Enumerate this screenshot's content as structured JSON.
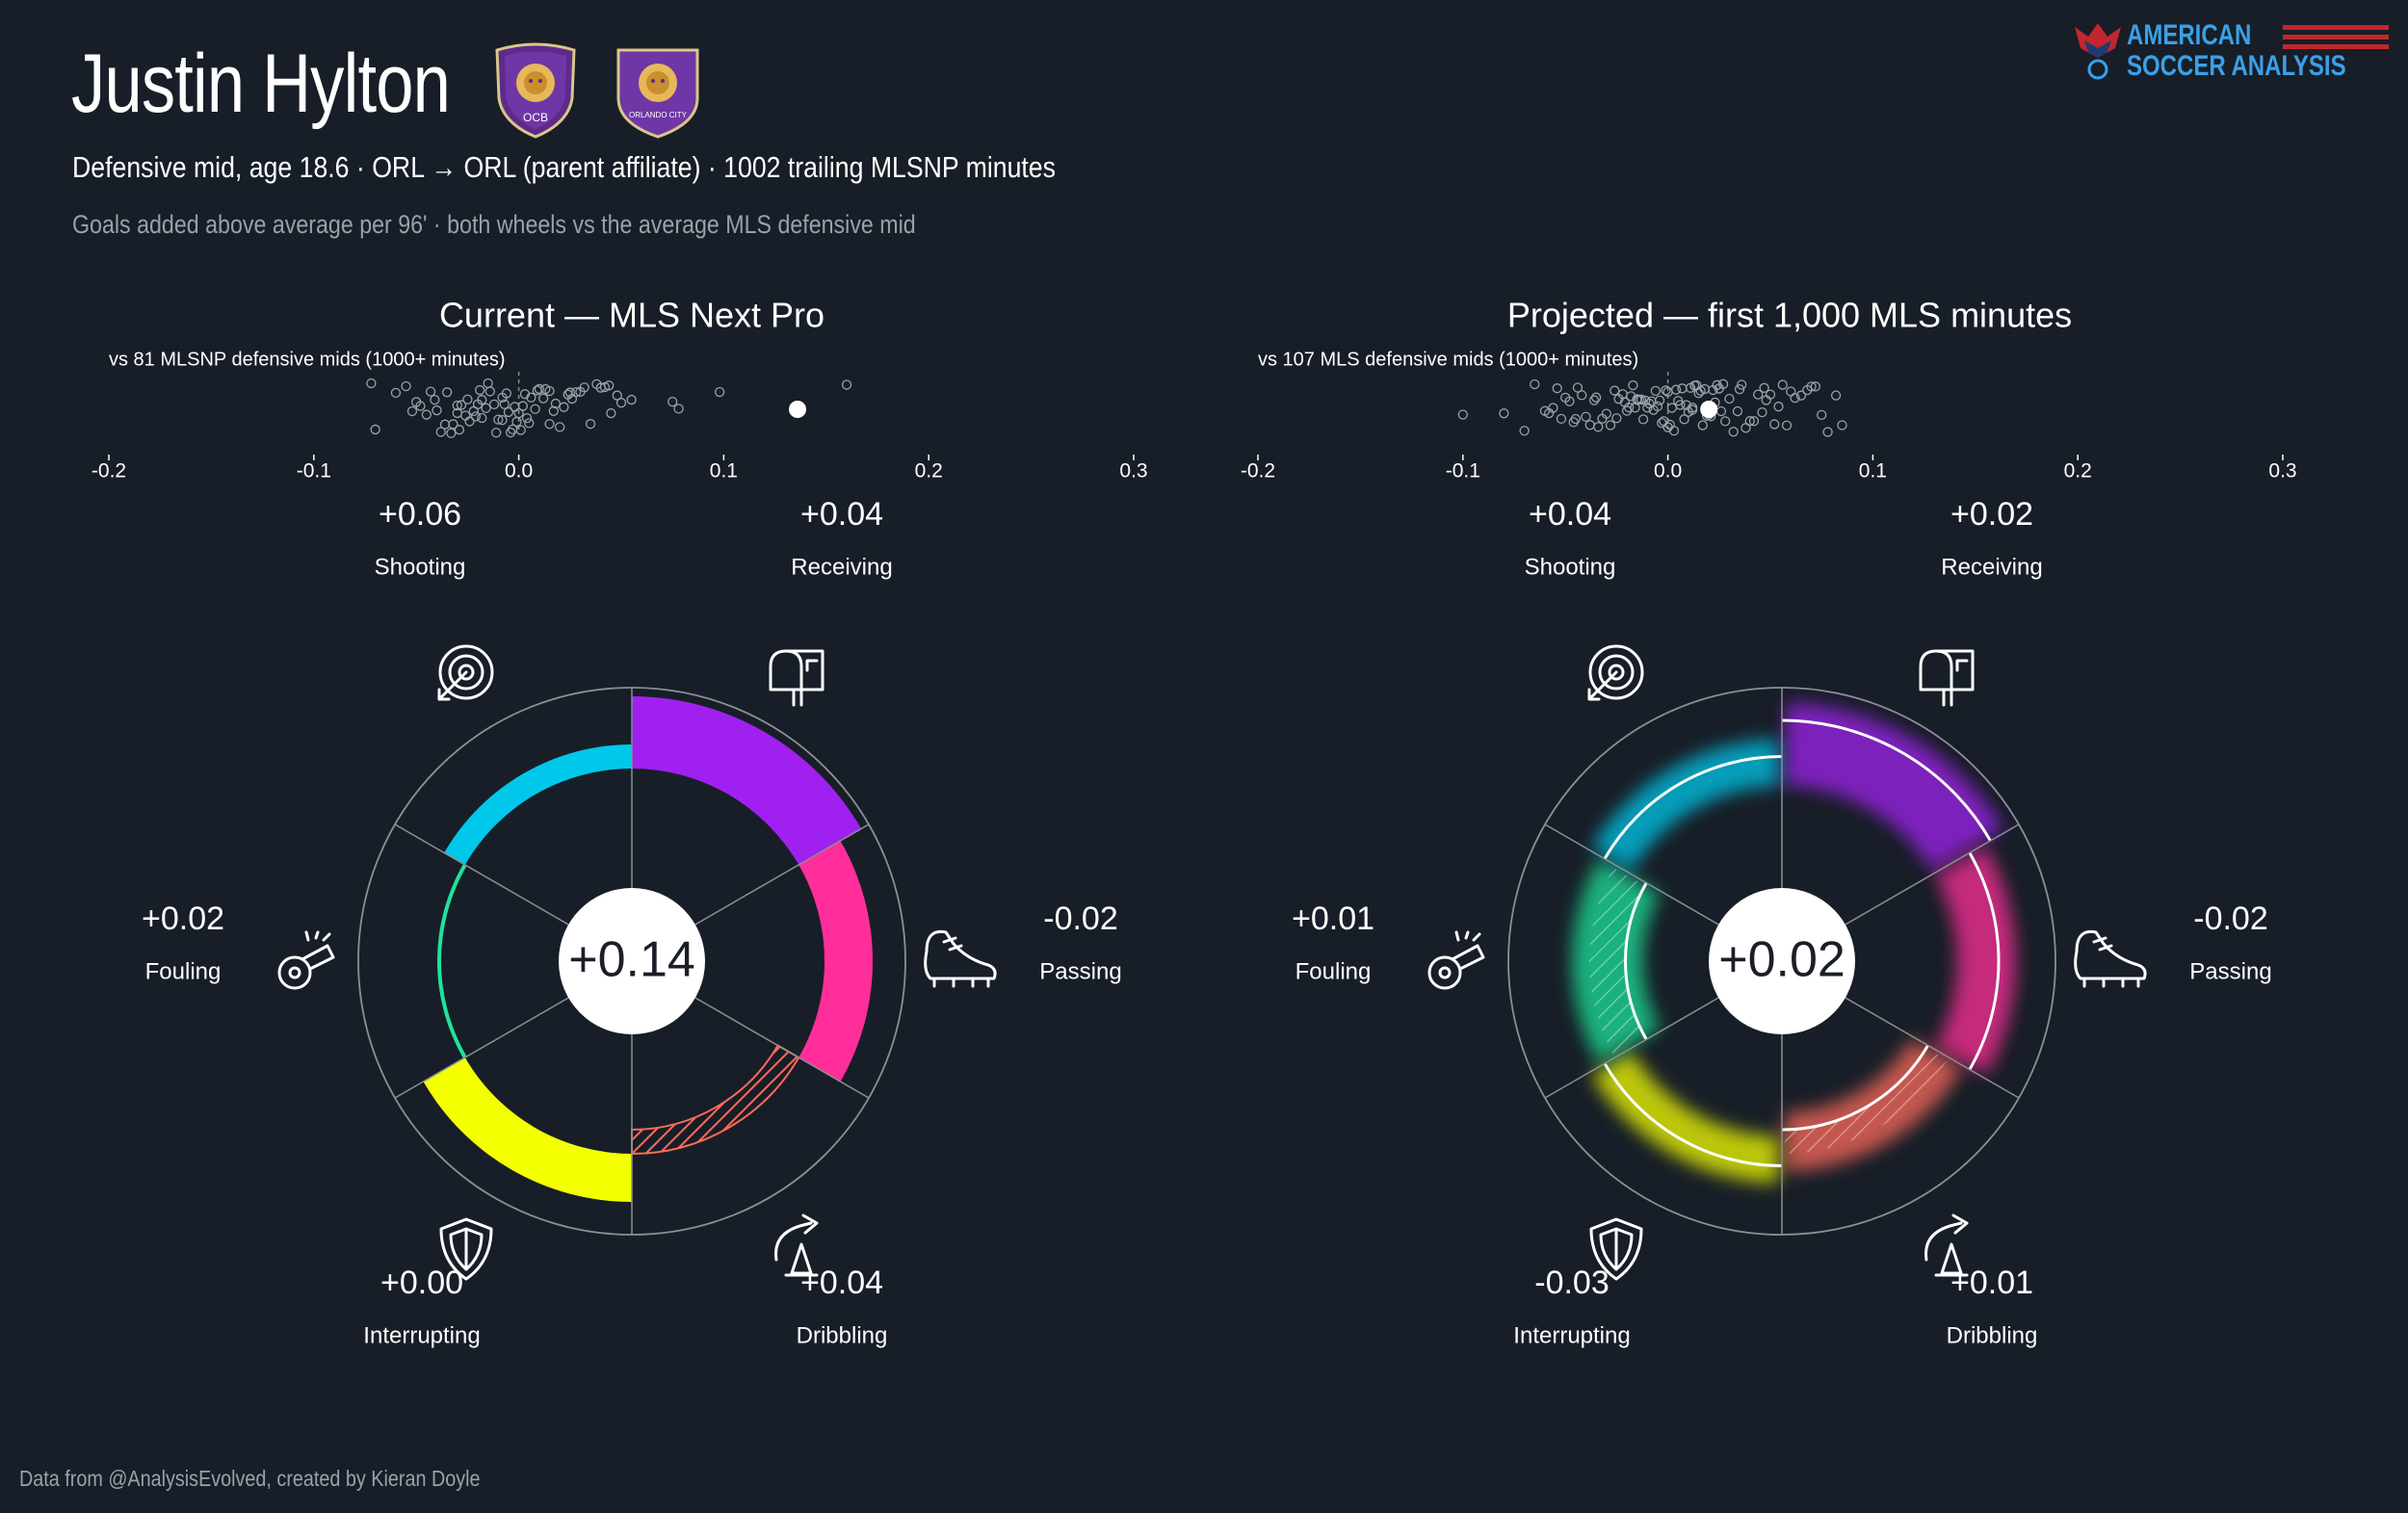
{
  "header": {
    "title": "Justin Hylton",
    "subtitle": "Defensive mid, age 18.6 · ORL → ORL (parent affiliate) · 1002 trailing MLSNP minutes",
    "note": "Goals added above average per 96' · both wheels vs the average MLS defensive mid"
  },
  "badges": {
    "left": {
      "text": "OCB"
    },
    "right": {
      "text": "ORLANDO CITY"
    }
  },
  "brand": {
    "line1": "AMERICAN",
    "line2": "SOCCER ANALYSIS"
  },
  "footer": "Data from @AnalysisEvolved, created by Kieran Doyle",
  "colors": {
    "background": "#171e27",
    "shooting": "#a020f0",
    "receiving": "#ff2e9a",
    "passing": "#ff6a5c",
    "dribbling": "#f4ff00",
    "interrupting": "#1fe39a",
    "fouling": "#00c8ea",
    "grid": "#8b8f96"
  },
  "chart_data": [
    {
      "type": "scatter",
      "panel": "Current — MLS Next Pro",
      "xlabel": "vs 81 MLSNP defensive mids (1000+ minutes)",
      "xlim": [
        -0.2,
        0.3
      ],
      "ticks": [
        "-0.2",
        "-0.1",
        "0.0",
        "0.1",
        "0.2",
        "0.3"
      ],
      "tick_values": [
        -0.2,
        -0.1,
        0.0,
        0.1,
        0.2,
        0.3
      ],
      "highlight": 0.136,
      "points": [
        -0.072,
        -0.07,
        -0.055,
        -0.052,
        -0.05,
        -0.048,
        -0.045,
        -0.043,
        -0.041,
        -0.04,
        -0.038,
        -0.036,
        -0.035,
        -0.033,
        -0.032,
        -0.03,
        -0.029,
        -0.028,
        -0.026,
        -0.025,
        -0.024,
        -0.022,
        -0.021,
        -0.02,
        -0.019,
        -0.018,
        -0.016,
        -0.015,
        -0.014,
        -0.012,
        -0.011,
        -0.01,
        -0.008,
        -0.007,
        -0.006,
        -0.005,
        -0.004,
        -0.003,
        -0.002,
        -0.001,
        0.0,
        0.001,
        0.002,
        0.003,
        0.004,
        0.005,
        0.006,
        0.008,
        0.009,
        0.01,
        0.012,
        0.013,
        0.015,
        0.017,
        0.018,
        0.02,
        0.022,
        0.024,
        0.026,
        0.028,
        0.03,
        0.032,
        0.035,
        0.038,
        0.04,
        0.042,
        0.045,
        0.048,
        0.05,
        0.055,
        0.075,
        0.078,
        0.098,
        0.16,
        -0.06,
        -0.03,
        0.015,
        -0.018,
        0.025,
        0.044,
        -0.008
      ]
    },
    {
      "type": "scatter",
      "panel": "Projected — first 1,000 MLS minutes",
      "xlabel": "vs 107 MLS defensive mids (1000+ minutes)",
      "xlim": [
        -0.2,
        0.3
      ],
      "ticks": [
        "-0.2",
        "-0.1",
        "0.0",
        "0.1",
        "0.2",
        "0.3"
      ],
      "tick_values": [
        -0.2,
        -0.1,
        0.0,
        0.1,
        0.2,
        0.3
      ],
      "highlight": 0.02,
      "points": [
        -0.1,
        -0.08,
        -0.07,
        -0.06,
        -0.058,
        -0.056,
        -0.054,
        -0.052,
        -0.05,
        -0.048,
        -0.046,
        -0.044,
        -0.042,
        -0.04,
        -0.038,
        -0.036,
        -0.034,
        -0.032,
        -0.03,
        -0.028,
        -0.026,
        -0.025,
        -0.024,
        -0.022,
        -0.021,
        -0.02,
        -0.019,
        -0.018,
        -0.017,
        -0.016,
        -0.015,
        -0.014,
        -0.013,
        -0.012,
        -0.011,
        -0.01,
        -0.009,
        -0.008,
        -0.007,
        -0.006,
        -0.005,
        -0.004,
        -0.003,
        -0.002,
        -0.001,
        0.0,
        0.001,
        0.002,
        0.003,
        0.004,
        0.005,
        0.006,
        0.007,
        0.008,
        0.009,
        0.01,
        0.011,
        0.012,
        0.013,
        0.014,
        0.015,
        0.016,
        0.017,
        0.018,
        0.019,
        0.02,
        0.021,
        0.022,
        0.023,
        0.024,
        0.025,
        0.026,
        0.028,
        0.03,
        0.032,
        0.034,
        0.036,
        0.038,
        0.04,
        0.042,
        0.044,
        0.046,
        0.048,
        0.05,
        0.052,
        0.054,
        0.056,
        0.058,
        0.06,
        0.062,
        0.065,
        0.068,
        0.07,
        0.072,
        0.075,
        0.078,
        0.082,
        0.085,
        -0.065,
        -0.045,
        -0.035,
        -0.015,
        0.0,
        0.012,
        0.027,
        0.035,
        0.047
      ]
    },
    {
      "type": "radial-bar",
      "panel": "Current — MLS Next Pro",
      "center_label": "+0.14",
      "total": 0.14,
      "categories": [
        "Shooting",
        "Receiving",
        "Passing",
        "Dribbling",
        "Interrupting",
        "Fouling"
      ],
      "value_labels": [
        "+0.06",
        "+0.04",
        "-0.02",
        "+0.04",
        "+0.00",
        "+0.02"
      ],
      "values": [
        0.06,
        0.04,
        -0.02,
        0.04,
        0.0,
        0.02
      ],
      "uncertainty": false
    },
    {
      "type": "radial-bar",
      "panel": "Projected — first 1,000 MLS minutes",
      "center_label": "+0.02",
      "total": 0.02,
      "categories": [
        "Shooting",
        "Receiving",
        "Passing",
        "Dribbling",
        "Interrupting",
        "Fouling"
      ],
      "value_labels": [
        "+0.04",
        "+0.02",
        "-0.02",
        "+0.01",
        "-0.03",
        "+0.01"
      ],
      "values": [
        0.04,
        0.02,
        -0.02,
        0.01,
        -0.03,
        0.01
      ],
      "uncertainty": true
    }
  ]
}
